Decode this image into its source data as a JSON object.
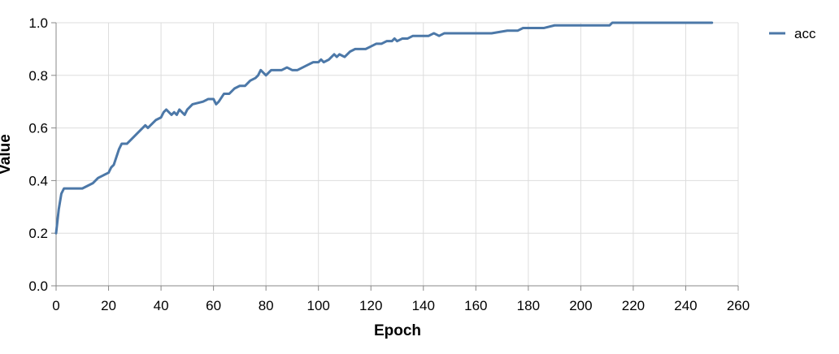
{
  "chart_data": {
    "type": "line",
    "xlabel": "Epoch",
    "ylabel": "Value",
    "xlim": [
      0,
      260
    ],
    "ylim": [
      0,
      1
    ],
    "x_ticks": [
      0,
      20,
      40,
      60,
      80,
      100,
      120,
      140,
      160,
      180,
      200,
      220,
      240,
      260
    ],
    "y_ticks": [
      "0.0",
      "0.2",
      "0.4",
      "0.6",
      "0.8",
      "1.0"
    ],
    "grid": true,
    "legend_position": "top-right",
    "series": [
      {
        "name": "acc",
        "color": "#4c78a8",
        "x": [
          0,
          1,
          2,
          3,
          4,
          5,
          10,
          12,
          14,
          16,
          18,
          20,
          21,
          22,
          23,
          24,
          25,
          26,
          27,
          29,
          30,
          31,
          32,
          34,
          35,
          36,
          38,
          40,
          41,
          42,
          44,
          45,
          46,
          47,
          49,
          50,
          52,
          56,
          58,
          60,
          61,
          62,
          64,
          66,
          68,
          70,
          72,
          74,
          76,
          77,
          78,
          79,
          80,
          81,
          82,
          84,
          86,
          88,
          90,
          92,
          94,
          96,
          98,
          100,
          101,
          102,
          104,
          105,
          106,
          107,
          108,
          110,
          112,
          114,
          116,
          118,
          120,
          122,
          124,
          126,
          128,
          129,
          130,
          132,
          134,
          136,
          138,
          140,
          142,
          144,
          146,
          148,
          150,
          160,
          166,
          172,
          176,
          178,
          180,
          182,
          186,
          190,
          196,
          200,
          206,
          211,
          212,
          250
        ],
        "values": [
          0.2,
          0.29,
          0.35,
          0.37,
          0.37,
          0.37,
          0.37,
          0.38,
          0.39,
          0.41,
          0.42,
          0.43,
          0.45,
          0.46,
          0.49,
          0.52,
          0.54,
          0.54,
          0.54,
          0.56,
          0.57,
          0.58,
          0.59,
          0.61,
          0.6,
          0.61,
          0.63,
          0.64,
          0.66,
          0.67,
          0.65,
          0.66,
          0.65,
          0.67,
          0.65,
          0.67,
          0.69,
          0.7,
          0.71,
          0.71,
          0.69,
          0.7,
          0.73,
          0.73,
          0.75,
          0.76,
          0.76,
          0.78,
          0.79,
          0.8,
          0.82,
          0.81,
          0.8,
          0.81,
          0.82,
          0.82,
          0.82,
          0.83,
          0.82,
          0.82,
          0.83,
          0.84,
          0.85,
          0.85,
          0.86,
          0.85,
          0.86,
          0.87,
          0.88,
          0.87,
          0.88,
          0.87,
          0.89,
          0.9,
          0.9,
          0.9,
          0.91,
          0.92,
          0.92,
          0.93,
          0.93,
          0.94,
          0.93,
          0.94,
          0.94,
          0.95,
          0.95,
          0.95,
          0.95,
          0.96,
          0.95,
          0.96,
          0.96,
          0.96,
          0.96,
          0.97,
          0.97,
          0.98,
          0.98,
          0.98,
          0.98,
          0.99,
          0.99,
          0.99,
          0.99,
          0.99,
          1.0,
          1.0
        ]
      }
    ]
  }
}
